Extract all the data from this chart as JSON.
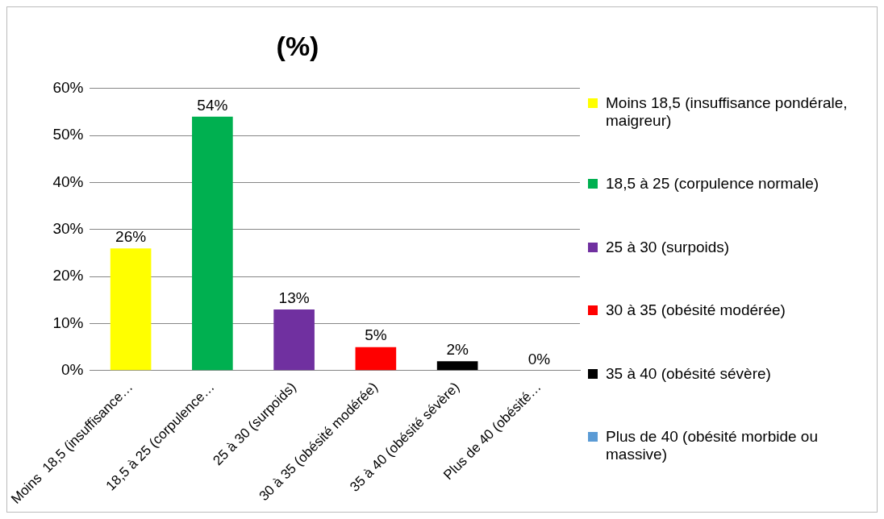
{
  "chart_data": {
    "type": "bar",
    "title": "(%)",
    "stacked": true,
    "legend": "right",
    "grid": "y",
    "categories": [
      "Moins  18,5 (insuffisance…",
      "18,5 à 25 (corpulence…",
      "25 à 30 (surpoids)",
      "30 à 35 (obésité modérée)",
      "35 à 40 (obésité sévère)",
      "Plus de 40 (obésité…"
    ],
    "series": [
      {
        "name": "Moins 18,5 (insuffisance pondérale, maigreur)",
        "color": "#ffff00",
        "values": [
          26,
          null,
          null,
          null,
          null,
          null
        ],
        "value_labels": [
          "26%",
          null,
          null,
          null,
          null,
          null
        ]
      },
      {
        "name": "18,5 à 25 (corpulence normale)",
        "color": "#00b050",
        "values": [
          null,
          54,
          null,
          null,
          null,
          null
        ],
        "value_labels": [
          null,
          "54%",
          null,
          null,
          null,
          null
        ]
      },
      {
        "name": "25 à 30 (surpoids)",
        "color": "#7030a0",
        "values": [
          null,
          null,
          13,
          null,
          null,
          null
        ],
        "value_labels": [
          null,
          null,
          "13%",
          null,
          null,
          null
        ]
      },
      {
        "name": "30 à 35 (obésité modérée)",
        "color": "#ff0000",
        "values": [
          null,
          null,
          null,
          5,
          null,
          null
        ],
        "value_labels": [
          null,
          null,
          null,
          "5%",
          null,
          null
        ]
      },
      {
        "name": "35 à 40 (obésité sévère)",
        "color": "#000000",
        "values": [
          null,
          null,
          null,
          null,
          2,
          null
        ],
        "value_labels": [
          null,
          null,
          null,
          null,
          "2%",
          null
        ]
      },
      {
        "name": "Plus de 40 (obésité morbide ou massive)",
        "color": "#5b9bd5",
        "values": [
          null,
          null,
          null,
          null,
          null,
          0
        ],
        "value_labels": [
          null,
          null,
          null,
          null,
          null,
          "0%"
        ]
      }
    ],
    "ylim": [
      0,
      60
    ],
    "yticks": [
      {
        "value": 0,
        "label": "0%"
      },
      {
        "value": 10,
        "label": "10%"
      },
      {
        "value": 20,
        "label": "20%"
      },
      {
        "value": 30,
        "label": "30%"
      },
      {
        "value": 40,
        "label": "40%"
      },
      {
        "value": 50,
        "label": "50%"
      },
      {
        "value": 60,
        "label": "60%"
      }
    ]
  }
}
